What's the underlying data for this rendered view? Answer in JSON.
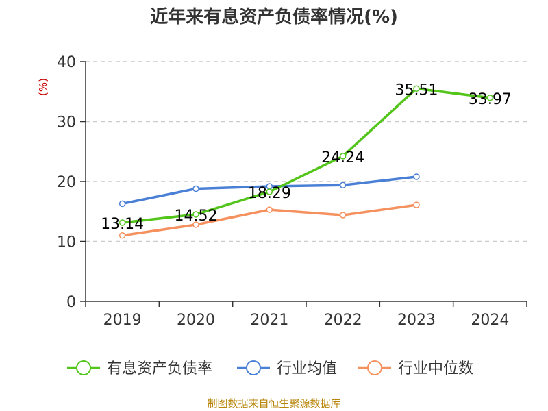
{
  "chart_data": {
    "type": "line",
    "title": "近年来有息资产负债率情况(%)",
    "ylabel": "(%)",
    "x": [
      "2019",
      "2020",
      "2021",
      "2022",
      "2023",
      "2024"
    ],
    "ylim": [
      0,
      40
    ],
    "yticks": [
      0,
      10,
      20,
      30,
      40
    ],
    "grid": true,
    "legend_position": "bottom",
    "series": [
      {
        "name": "有息资产负债率",
        "color": "#52c41a",
        "values": [
          13.14,
          14.52,
          18.29,
          24.24,
          35.51,
          33.97
        ],
        "labels": [
          "13.14",
          "14.52",
          "18.29",
          "24.24",
          "35.51",
          "33.97"
        ]
      },
      {
        "name": "行业均值",
        "color": "#4a7fd6",
        "values": [
          16.3,
          18.8,
          19.2,
          19.4,
          20.8,
          null
        ]
      },
      {
        "name": "行业中位数",
        "color": "#f4915e",
        "values": [
          11.0,
          12.8,
          15.3,
          14.4,
          16.1,
          null
        ]
      }
    ],
    "source": "制图数据来自恒生聚源数据库"
  }
}
